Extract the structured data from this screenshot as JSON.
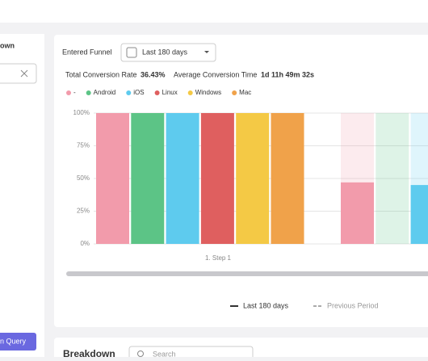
{
  "ui": {
    "left_tab": "own",
    "query_button": "n Query",
    "funnel_label": "Entered Funnel",
    "date_range": "Last 180 days",
    "total_conversion_label": "Total Conversion Rate",
    "total_conversion_value": "36.43%",
    "avg_time_label": "Average Conversion Time",
    "avg_time_value": "1d 11h 49m 32s",
    "current_period": "Last 180 days",
    "previous_period": "Previous Period",
    "breakdown_title": "Breakdown",
    "search_placeholder": "Search"
  },
  "chart_data": {
    "type": "bar",
    "categories": [
      "1. Step 1",
      null
    ],
    "series": [
      {
        "name": "-",
        "color": "#f29bab",
        "values": [
          100,
          47
        ]
      },
      {
        "name": "Android",
        "color": "#5cc486",
        "values": [
          100,
          0
        ]
      },
      {
        "name": "iOS",
        "color": "#5ecbee",
        "values": [
          100,
          45
        ]
      },
      {
        "name": "Linux",
        "color": "#df5f5f",
        "values": [
          100,
          null
        ]
      },
      {
        "name": "Windows",
        "color": "#f4c945",
        "values": [
          100,
          null
        ]
      },
      {
        "name": "Mac",
        "color": "#f0a24a",
        "values": [
          100,
          null
        ]
      }
    ],
    "ylim": [
      0,
      100
    ],
    "yticks": [
      {
        "value": 0,
        "label": "0%"
      },
      {
        "value": 25,
        "label": "25%"
      },
      {
        "value": 50,
        "label": "50%"
      },
      {
        "value": 75,
        "label": "75%"
      },
      {
        "value": 100,
        "label": "100%"
      }
    ],
    "grid": true
  }
}
